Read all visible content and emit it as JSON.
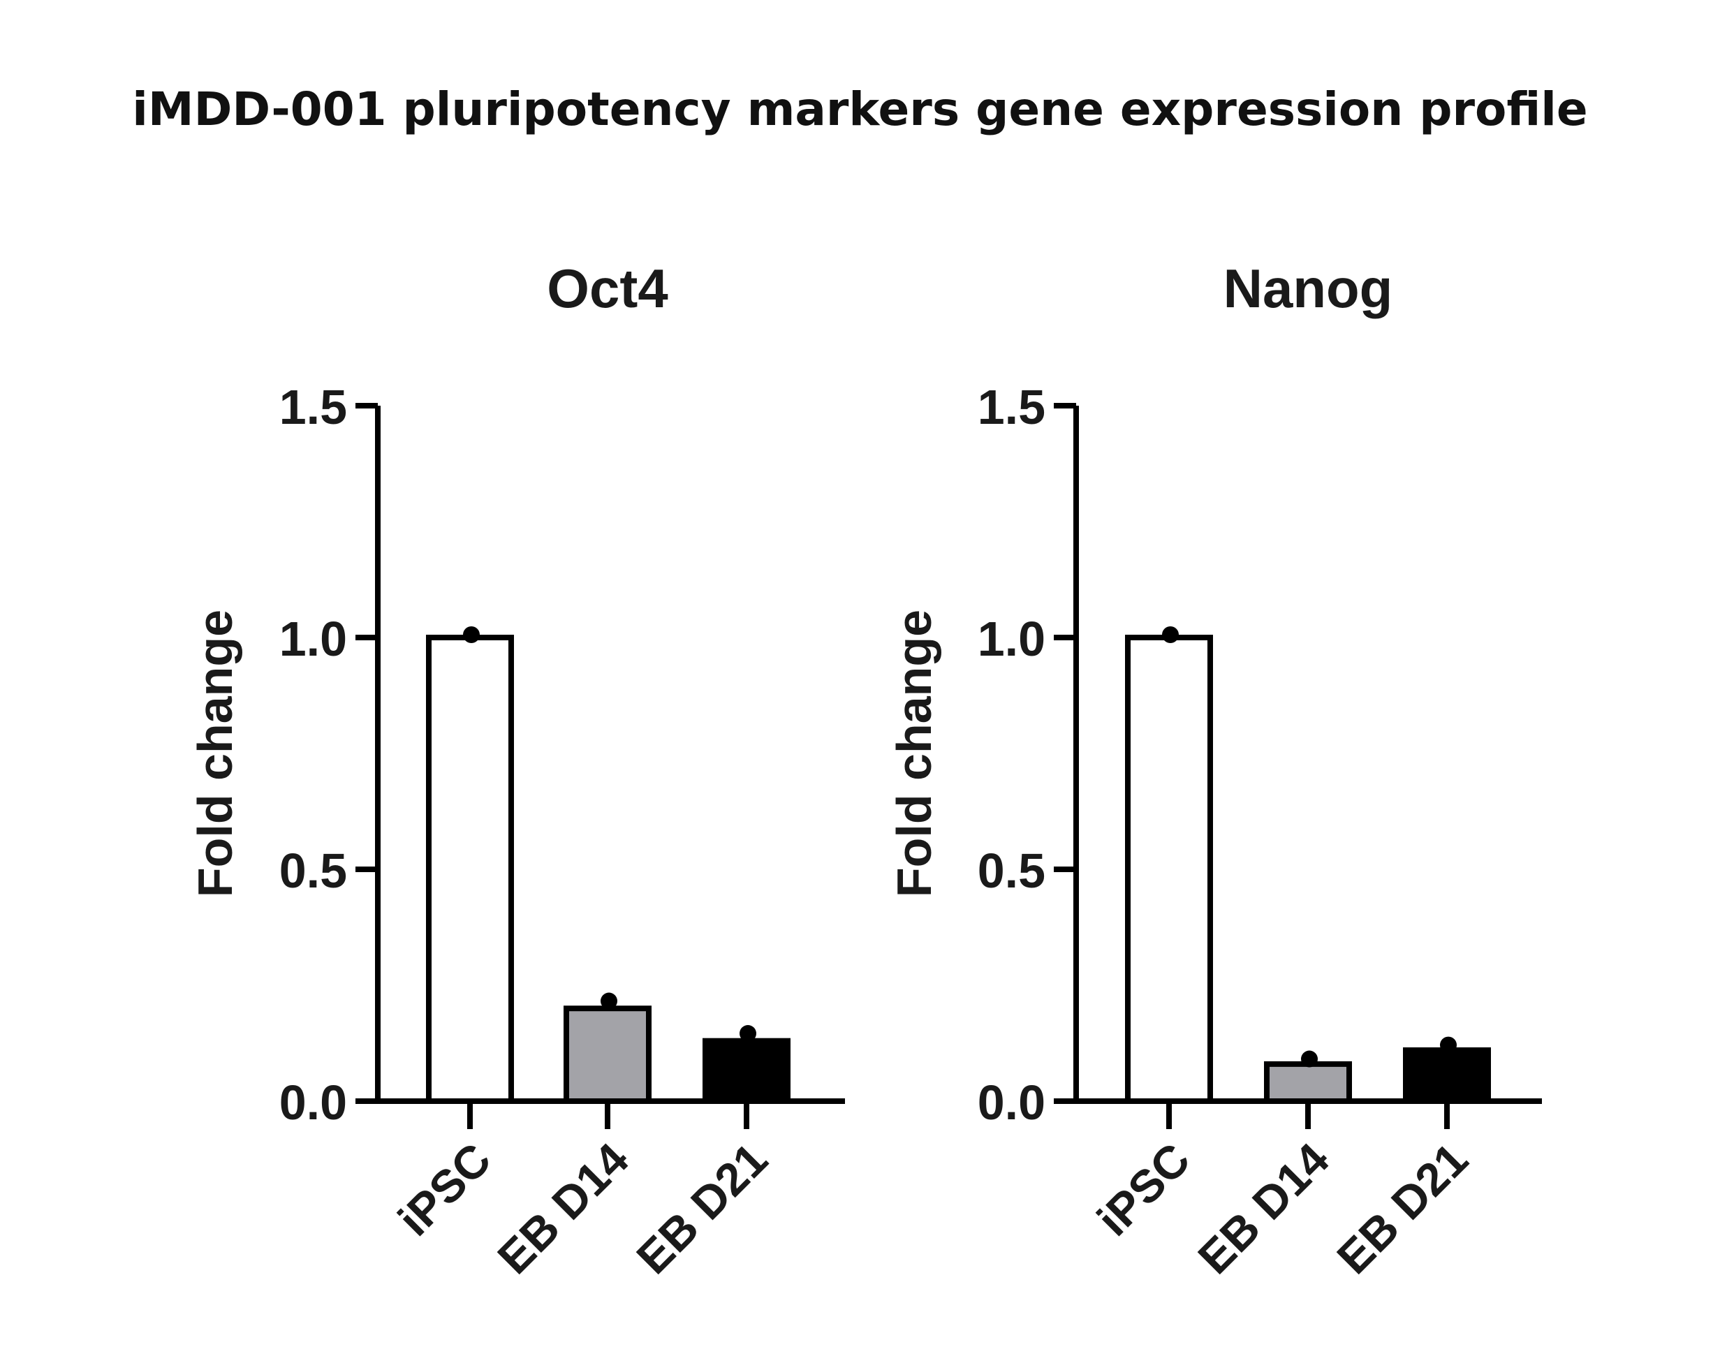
{
  "title": "iMDD-001 pluripotency markers gene expression profile",
  "chart_data": [
    {
      "type": "bar",
      "title": "Oct4",
      "ylabel": "Fold change",
      "xlabel": "",
      "categories": [
        "iPSC",
        "EB D14",
        "EB D21"
      ],
      "values": [
        1.0,
        0.2,
        0.13
      ],
      "points": [
        1.0,
        0.21,
        0.14
      ],
      "ylim": [
        0,
        1.5
      ],
      "yticks": [
        "0.0",
        "0.5",
        "1.0",
        "1.5"
      ],
      "bar_colors": [
        "#ffffff",
        "#a3a3a8",
        "#000000"
      ],
      "grid": false
    },
    {
      "type": "bar",
      "title": "Nanog",
      "ylabel": "Fold change",
      "xlabel": "",
      "categories": [
        "iPSC",
        "EB D14",
        "EB D21"
      ],
      "values": [
        1.0,
        0.08,
        0.11
      ],
      "points": [
        1.0,
        0.085,
        0.115
      ],
      "ylim": [
        0,
        1.5
      ],
      "yticks": [
        "0.0",
        "0.5",
        "1.0",
        "1.5"
      ],
      "bar_colors": [
        "#ffffff",
        "#a3a3a8",
        "#000000"
      ],
      "grid": false
    }
  ]
}
